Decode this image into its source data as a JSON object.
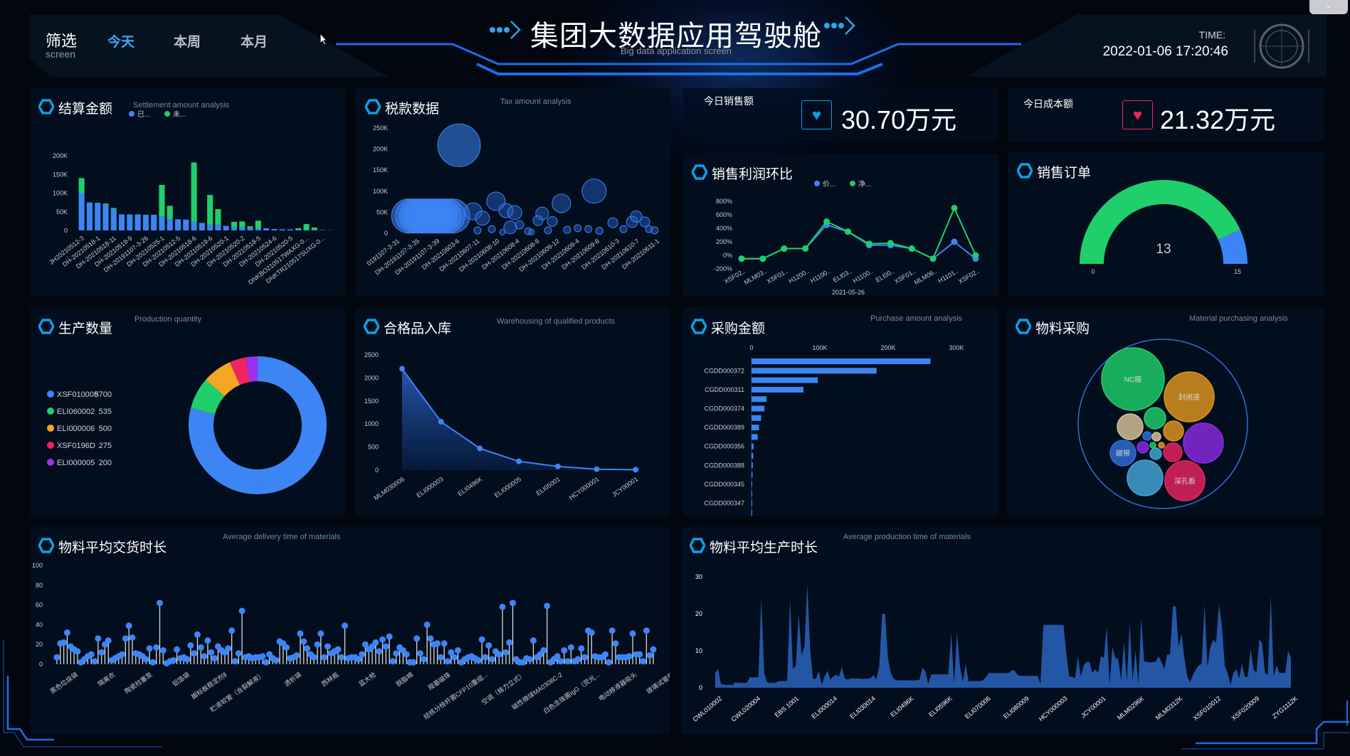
{
  "header": {
    "title": "集团大数据应用驾驶舱",
    "subtitle": "Big data application screen",
    "time_label": "TIME:",
    "time_value": "2022-01-06 17:20:46",
    "dropdown_icon": "chevron-down-icon"
  },
  "filter": {
    "label": "筛选",
    "sublabel": "screen",
    "tabs": [
      {
        "label": "今天",
        "active": true
      },
      {
        "label": "本周",
        "active": false
      },
      {
        "label": "本月",
        "active": false
      }
    ]
  },
  "colors": {
    "accent": "#3d85f5",
    "green": "#1ecf6b",
    "cyan": "#0d9fe6",
    "red": "#f0245f",
    "panel": "#020e1d"
  },
  "kpis": [
    {
      "label": "今日销售额",
      "value": "30.70万元",
      "icon": "heart-icon",
      "color": "#0d9fe6"
    },
    {
      "label": "今日成本额",
      "value": "21.32万元",
      "icon": "heart-icon",
      "color": "#f0245f"
    }
  ],
  "panels": {
    "settlement": {
      "title": "结算金额",
      "subtitle": "Settlement amount analysis"
    },
    "tax": {
      "title": "税款数据",
      "subtitle": "Tax amount analysis"
    },
    "profit": {
      "title": "销售利润环比"
    },
    "orders": {
      "title": "销售订单"
    },
    "production": {
      "title": "生产数量",
      "subtitle": "Production quantity"
    },
    "qualified": {
      "title": "合格品入库",
      "subtitle": "Warehousing of qualified products"
    },
    "purchase": {
      "title": "采购金额",
      "subtitle": "Purchase amount analysis"
    },
    "material": {
      "title": "物料采购",
      "subtitle": "Material purchasing analysis"
    },
    "delivery": {
      "title": "物料平均交货时长",
      "subtitle": "Average delivery time of materials"
    },
    "prodtime": {
      "title": "物料平均生产时长",
      "subtitle": "Average production time of materials"
    }
  },
  "chart_data": [
    {
      "id": "settlement",
      "type": "bar",
      "stacked": true,
      "legend": [
        "已...",
        "未..."
      ],
      "yticks": [
        "0",
        "50K",
        "100K",
        "150K",
        "200K"
      ],
      "ylim": [
        0,
        200000
      ],
      "series": [
        {
          "name": "已...",
          "color": "#3d85f5",
          "values": [
            100,
            75,
            74,
            68,
            57,
            43,
            43,
            43,
            42,
            42,
            38,
            30,
            30,
            29,
            23,
            18,
            16,
            15,
            12,
            8,
            8,
            7,
            5,
            6,
            4,
            3,
            3,
            2,
            1,
            2,
            0,
            0.5
          ]
        },
        {
          "name": "未...",
          "color": "#1ecf6b",
          "values": [
            40,
            0,
            0,
            4,
            3,
            0,
            0,
            0,
            0,
            0,
            84,
            36,
            0,
            0,
            159,
            2,
            79,
            42,
            0,
            15,
            16,
            4,
            21,
            0,
            0,
            0,
            0,
            4,
            16,
            6,
            1,
            0
          ]
        }
      ],
      "unit": "K",
      "xlabels": [
        "JH20210512-3",
        "DH-20210518-1",
        "DH-20210518-11",
        "DH-20210519-9",
        "DH-20191107-3-26",
        "DH-20210525-1",
        "DH-20210512-5",
        "DH-20210518-6",
        "DH-20210519-6",
        "DH-20210520-1",
        "DH-20210520-2",
        "DH-20210518-5",
        "DH-20210524-6",
        "DH-20210520-5",
        "DNKBO210517WAXG-0...",
        "DNKTR210517SUXG-0..."
      ]
    },
    {
      "id": "tax",
      "type": "scatter",
      "yticks": [
        "0",
        "50K",
        "100K",
        "150K",
        "200K",
        "250K"
      ],
      "ylim": [
        0,
        250
      ],
      "points": [
        [
          5,
          41,
          24
        ],
        [
          6.5,
          41,
          24
        ],
        [
          8,
          41,
          24
        ],
        [
          9.5,
          41,
          24
        ],
        [
          11,
          41,
          24
        ],
        [
          12.5,
          41,
          24
        ],
        [
          14,
          41,
          24
        ],
        [
          15.5,
          41,
          24
        ],
        [
          17,
          41,
          24
        ],
        [
          18.5,
          41,
          24
        ],
        [
          20,
          41,
          24
        ],
        [
          22,
          41,
          24
        ],
        [
          24.4,
          209,
          30
        ],
        [
          29.9,
          52,
          12
        ],
        [
          33.4,
          36,
          10
        ],
        [
          38.6,
          76,
          13
        ],
        [
          42.5,
          54,
          10
        ],
        [
          45.8,
          49,
          10
        ],
        [
          44.1,
          14,
          9
        ],
        [
          47.7,
          20,
          6
        ],
        [
          31.5,
          7,
          5
        ],
        [
          37,
          10,
          5
        ],
        [
          56.4,
          47,
          9
        ],
        [
          54.8,
          30,
          7
        ],
        [
          60.3,
          28,
          7
        ],
        [
          63.8,
          71,
          13
        ],
        [
          76.4,
          100,
          17
        ],
        [
          58.6,
          7,
          5
        ],
        [
          66,
          8,
          5
        ],
        [
          70.1,
          12,
          5
        ],
        [
          74.2,
          10,
          5
        ],
        [
          78.4,
          6,
          5
        ],
        [
          83.6,
          25,
          7
        ],
        [
          87.7,
          10,
          5
        ],
        [
          91,
          27,
          8
        ],
        [
          92.6,
          40,
          8
        ],
        [
          95.9,
          27,
          7
        ],
        [
          97.5,
          10,
          5
        ],
        [
          99.7,
          7,
          5
        ],
        [
          51,
          5,
          5
        ],
        [
          52.3,
          3,
          4
        ],
        [
          41.1,
          3,
          4
        ]
      ],
      "xlabels": [
        "0191107-3-31",
        "DH-20191107-3-35",
        "DH-20191107-3-39",
        "DH-20210603-6",
        "DH-20210607-11",
        "DH-20210608-10",
        "DH-20210608-4",
        "DH-20210608-8",
        "DH-20210609-12",
        "DH-20210609-4",
        "DH-20210609-8",
        "DH-20210610-3",
        "DH-20210610-7",
        "DH-20210611-1"
      ]
    },
    {
      "id": "profit",
      "type": "line",
      "legend": [
        "价...",
        "净..."
      ],
      "yticks": [
        "-200%",
        "0%",
        "200%",
        "400%",
        "600%",
        "800%"
      ],
      "ylim": [
        -200,
        800
      ],
      "categories": [
        "XSF02..",
        "MLM03..",
        "XSF01..",
        "H1200..",
        "H1100..",
        "ELI03..",
        "H1100..",
        "ELI00..",
        "XSF01..",
        "MLM06..",
        "H1101..",
        "XSF02.."
      ],
      "date_label": "2021-05-26",
      "series": [
        {
          "name": "价...",
          "color": "#3d85f5",
          "values": [
            -50,
            -50,
            100,
            100,
            450,
            350,
            150,
            150,
            100,
            -50,
            200,
            -50
          ]
        },
        {
          "name": "净...",
          "color": "#1ecf6b",
          "values": [
            -50,
            -50,
            100,
            100,
            500,
            350,
            170,
            180,
            100,
            -50,
            700,
            0
          ]
        }
      ]
    },
    {
      "id": "orders",
      "type": "gauge",
      "value": 13,
      "min": 0,
      "max": 15,
      "value_label": "13",
      "min_label": "0",
      "max_label": "15"
    },
    {
      "id": "production",
      "type": "pie",
      "items": [
        {
          "name": "XSF010008",
          "value": 5700,
          "color": "#3d85f5"
        },
        {
          "name": "ELI060002",
          "value": 535,
          "color": "#1ecf6b"
        },
        {
          "name": "ELI000006",
          "value": 500,
          "color": "#f5a623"
        },
        {
          "name": "XSF0196D",
          "value": 275,
          "color": "#f0245f"
        },
        {
          "name": "ELI000005",
          "value": 200,
          "color": "#9b30f0"
        }
      ]
    },
    {
      "id": "qualified",
      "type": "area",
      "yticks": [
        "0",
        "500",
        "1000",
        "1500",
        "2000",
        "2500"
      ],
      "ylim": [
        0,
        2500
      ],
      "categories": [
        "MLM030006",
        "ELI000003",
        "ELI0496K",
        "ELI000005",
        "ELI05001",
        "HCY000001",
        "JCY00001"
      ],
      "values": [
        2200,
        1050,
        470,
        190,
        80,
        20,
        10
      ]
    },
    {
      "id": "purchase",
      "type": "bar-horizontal",
      "xticks": [
        "0",
        "100K",
        "200K",
        "300K"
      ],
      "xlim": [
        0,
        300
      ],
      "values": [
        262,
        183,
        97,
        76,
        22,
        19,
        14,
        11,
        9,
        3,
        2.5,
        2,
        1.5,
        1,
        1,
        0.5,
        0.5
      ],
      "ylabels": [
        {
          "i": 1,
          "t": "CGDD000372"
        },
        {
          "i": 3,
          "t": "CGDD000311"
        },
        {
          "i": 5,
          "t": "CGDD000374"
        },
        {
          "i": 7,
          "t": "CGDD000389"
        },
        {
          "i": 9,
          "t": "CGDD000356"
        },
        {
          "i": 11,
          "t": "CGDD000388"
        },
        {
          "i": 13,
          "t": "CGDD000345"
        },
        {
          "i": 15,
          "t": "CGDD000347"
        }
      ]
    },
    {
      "id": "material",
      "type": "bubble-pack",
      "items": [
        {
          "name": "NC膜",
          "value": 1936,
          "color": "#1ecf6b"
        },
        {
          "name": "封闭液",
          "value": 1225,
          "color": "#e0961e"
        },
        {
          "name": "",
          "value": 784,
          "color": "#8a2be2"
        },
        {
          "name": "深孔板",
          "value": 784,
          "color": "#e8245f"
        },
        {
          "name": "",
          "value": 625,
          "color": "#45a6d8"
        },
        {
          "name": "碳带",
          "value": 324,
          "color": "#2f6fd6"
        },
        {
          "name": "",
          "value": 324,
          "color": "#d8c49a"
        },
        {
          "name": "",
          "value": 225,
          "color": "#1ecf6b"
        },
        {
          "name": "",
          "value": 196,
          "color": "#e0961e"
        },
        {
          "name": "",
          "value": 169,
          "color": "#e8245f"
        },
        {
          "name": "",
          "value": 64,
          "color": "#8a2be2"
        },
        {
          "name": "",
          "value": 64,
          "color": "#45a6d8"
        },
        {
          "name": "",
          "value": 36,
          "color": "#2f6fd6"
        },
        {
          "name": "",
          "value": 36,
          "color": "#d8c49a"
        },
        {
          "name": "",
          "value": 16,
          "color": "#1ecf6b"
        },
        {
          "name": "",
          "value": 16,
          "color": "#e0961e"
        }
      ]
    },
    {
      "id": "delivery",
      "type": "lollipop",
      "yticks": [
        "0",
        "20",
        "40",
        "60",
        "80",
        "100"
      ],
      "ylim": [
        0,
        100
      ],
      "values": [
        7,
        21,
        22,
        32,
        18,
        15,
        13,
        2,
        5,
        8,
        10,
        3,
        26,
        12,
        20,
        24,
        4,
        6,
        8,
        10,
        26,
        39,
        27,
        11,
        10,
        8,
        5,
        16,
        2,
        17,
        62,
        14,
        1,
        3,
        4,
        15,
        6,
        7,
        5,
        19,
        11,
        30,
        17,
        8,
        24,
        12,
        6,
        18,
        14,
        12,
        16,
        34,
        3,
        11,
        54,
        7,
        8,
        6,
        7,
        7,
        8,
        2,
        10,
        6,
        4,
        23,
        21,
        17,
        6,
        7,
        9,
        31,
        23,
        16,
        10,
        7,
        20,
        31,
        7,
        18,
        11,
        13,
        15,
        7,
        39,
        6,
        7,
        7,
        5,
        10,
        20,
        15,
        18,
        22,
        13,
        25,
        18,
        28,
        3,
        11,
        17,
        14,
        10,
        2,
        2,
        26,
        11,
        5,
        40,
        26,
        20,
        21,
        7,
        21,
        3,
        12,
        7,
        14,
        2,
        5,
        7,
        8,
        6,
        4,
        25,
        7,
        19,
        5,
        13,
        10,
        58,
        12,
        22,
        62,
        5,
        2,
        2,
        6,
        5,
        24,
        7,
        10,
        14,
        59,
        2,
        5,
        8,
        3,
        14,
        3,
        17,
        3,
        5,
        16,
        7,
        34,
        32,
        8,
        7,
        7,
        10,
        2,
        34,
        21,
        7,
        7,
        7,
        8,
        31,
        10,
        10,
        3,
        34,
        9,
        15
      ],
      "xlabels": [
        "黑色垃圾袋",
        "隔离衣",
        "陶瓷柱塞泵",
        "铝箔袋",
        "脚标板稳定剂Ⅱ",
        "贮液软管（含裂解液）",
        "透析袋",
        "西林瓶",
        "蓝大枪",
        "脱脂棉",
        "羧基磁珠",
        "结核分枝杆菌CFP10重组...",
        "空调（格力立式）",
        "磁性微球MA0308C-2",
        "白色念珠菌IgG（荧光...",
        "电动移液器吸头",
        "玻璃试管瓶"
      ]
    },
    {
      "id": "prodtime",
      "type": "area",
      "yticks": [
        "0",
        "10",
        "20",
        "30"
      ],
      "ylim": [
        0,
        30
      ],
      "values": [
        4,
        5,
        1,
        0.8,
        0.7,
        0.8,
        0.7,
        1.5,
        1.3,
        1.3,
        1.3,
        1.3,
        2.8,
        2.8,
        2.8,
        2.8,
        24.5,
        4,
        1.5,
        1.3,
        1.3,
        1.3,
        1.8,
        1.8,
        1.8,
        1.8,
        24,
        5,
        6,
        20,
        9,
        11,
        28,
        10,
        2.3,
        2.5,
        4.5,
        0.8,
        3,
        4.6,
        2.2,
        3,
        3.5,
        3,
        5.6,
        2.5,
        2.2,
        2.5,
        2.5,
        2.5,
        2.5,
        2.4,
        2.4,
        2.4,
        2.6,
        3.4,
        2.2,
        6,
        20,
        20,
        8,
        4,
        2.5,
        2,
        2,
        2,
        2,
        2,
        2,
        2,
        2,
        2.2,
        5.4,
        4.5,
        1,
        3.6,
        3.6,
        3.6,
        3.6,
        3.6,
        3.6,
        3.6,
        14.8,
        1,
        15,
        6,
        1.5,
        6.5,
        1.8,
        1.8,
        1.8,
        1.8,
        1.8,
        2,
        2.8,
        4,
        4,
        4,
        4,
        4,
        4,
        4,
        4,
        4.7,
        4.7,
        3.5,
        3.2,
        3.2,
        3.2,
        3.2,
        3.2,
        3.2,
        3.2,
        1,
        17,
        17,
        17,
        17,
        17,
        17,
        17,
        17,
        9,
        3,
        3,
        2.5,
        8.5,
        3,
        6,
        7,
        7,
        4,
        5,
        4,
        8.5,
        8,
        16.5,
        1,
        11,
        8,
        7.8,
        2,
        12.5,
        2,
        17.5,
        2,
        10,
        1,
        19,
        7,
        7,
        6.8,
        7,
        7,
        8.5,
        7,
        5,
        9,
        9,
        22,
        22,
        11,
        14.5,
        8,
        3,
        1.5,
        3.5,
        5,
        6,
        6.5,
        22.5,
        5.5,
        11,
        13,
        12,
        22.5,
        17,
        6,
        4,
        0.8,
        4,
        5,
        2.5,
        6.5,
        2.8,
        3,
        10.5,
        5,
        4,
        13,
        12,
        4,
        3.5,
        25,
        3,
        6,
        4,
        4,
        4,
        10,
        8
      ],
      "xlabels": [
        "CWL010002",
        "CWL020004",
        "EBS 1001",
        "ELI000014",
        "ELI030014",
        "ELI0496K",
        "ELI0596K",
        "ELI070006",
        "ELI080009",
        "HCY000003",
        "JCY00001",
        "MLM0296K",
        "MLM0312K",
        "XSF010012",
        "XSF020009",
        "ZYG1112K"
      ]
    }
  ]
}
